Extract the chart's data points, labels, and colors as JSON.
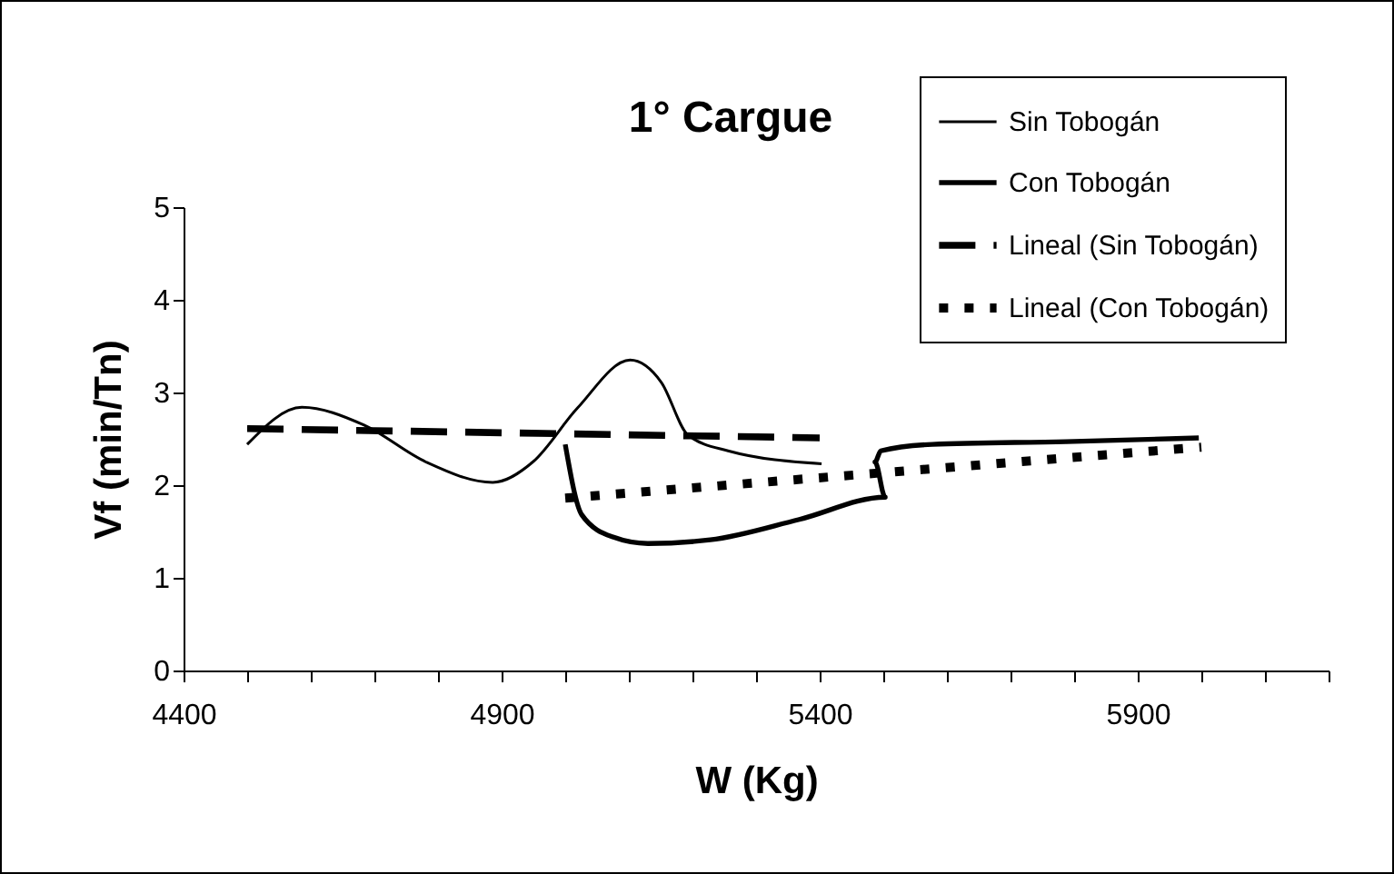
{
  "chart_data": {
    "type": "line",
    "title": "1° Cargue",
    "xlabel": "W (Kg)",
    "ylabel": "Vf (min/Tn)",
    "xlim": [
      4400,
      6200
    ],
    "xticks": [
      4400,
      {
        "value": 4500,
        "label": null
      },
      {
        "value": 4600,
        "label": null
      },
      {
        "value": 4700,
        "label": null
      },
      {
        "value": 4800,
        "label": null
      },
      4900,
      {
        "value": 5000,
        "label": null
      },
      {
        "value": 5100,
        "label": null
      },
      {
        "value": 5200,
        "label": null
      },
      {
        "value": 5300,
        "label": null
      },
      5400,
      {
        "value": 5500,
        "label": null
      },
      {
        "value": 5600,
        "label": null
      },
      {
        "value": 5700,
        "label": null
      },
      {
        "value": 5800,
        "label": null
      },
      5900,
      {
        "value": 6000,
        "label": null
      },
      {
        "value": 6100,
        "label": null
      },
      {
        "value": 6200,
        "label": null
      }
    ],
    "ylim": [
      0,
      5
    ],
    "yticks": [
      0,
      1,
      2,
      3,
      4,
      5
    ],
    "grid": false,
    "legend": "top right",
    "marker": "none",
    "series": [
      {
        "name": "Sin Tobogán",
        "color": "#000000",
        "line_style": "solid",
        "x": [
          4500,
          4586,
          4683,
          4781,
          4886,
          4949,
          5019,
          5102,
          5151,
          5193,
          5256,
          5403
        ],
        "values": [
          2.44,
          2.84,
          2.65,
          2.25,
          2.03,
          2.25,
          2.83,
          3.35,
          3.11,
          2.54,
          2.37,
          2.23
        ]
      },
      {
        "name": "Con Tobogán",
        "color": "#000000",
        "line_style": "solid",
        "x": [
          5000,
          5026,
          5075,
          5130,
          5228,
          5368,
          5503,
          5487,
          5496,
          5577,
          5787,
          5996
        ],
        "values": [
          2.44,
          1.68,
          1.44,
          1.37,
          1.41,
          1.63,
          1.87,
          2.25,
          2.37,
          2.44,
          2.47,
          2.51
        ]
      },
      {
        "name": "Lineal (Sin Tobogán)",
        "color": "#000000",
        "line_style": "dashed",
        "x": [
          4500,
          5400
        ],
        "values": [
          2.61,
          2.51
        ]
      },
      {
        "name": "Lineal (Con Tobogán)",
        "color": "#000000",
        "line_style": "dotted",
        "x": [
          5000,
          6000
        ],
        "values": [
          1.86,
          2.41
        ]
      }
    ]
  }
}
